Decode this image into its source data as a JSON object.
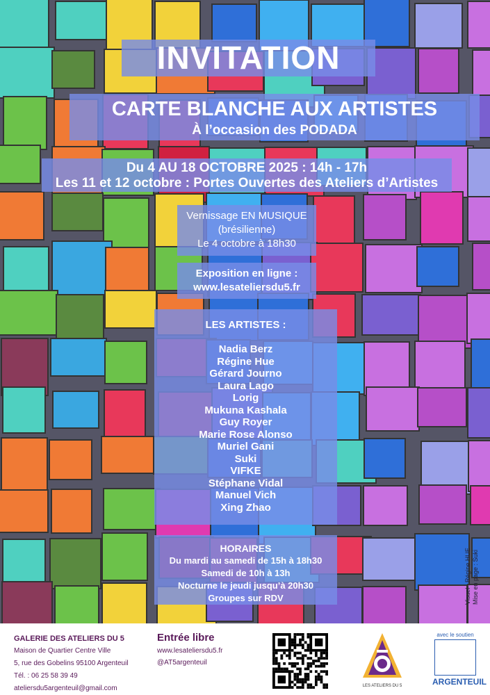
{
  "invitation": "INVITATION",
  "event": {
    "title": "CARTE BLANCHE AUX ARTISTES",
    "subtitle": "À l’occasion des PODADA"
  },
  "dates": {
    "line1": "Du 4 AU 18 OCTOBRE 2025 : 14h - 17h",
    "line2": "Les 11 et 12 octobre : Portes Ouvertes des Ateliers d’Artistes"
  },
  "vernissage": {
    "line1": "Vernissage EN MUSIQUE",
    "line2": "(brésilienne)",
    "line3": "Le 4 octobre à 18h30"
  },
  "expo": {
    "line1": "Exposition en ligne :",
    "line2": "www.lesateliersdu5.fr"
  },
  "artists": {
    "heading": "LES ARTISTES  :",
    "names": [
      "Nadia Berz",
      "Régine Hue",
      "Gérard Journo",
      "Laura Lago",
      "Lorig",
      "Mukuna Kashala",
      "Guy Royer",
      "Marie Rose Alonso",
      "Muriel Gani",
      "Suki",
      "VIFKE",
      "Stéphane Vidal",
      "Manuel Vich",
      "Xing Zhao"
    ]
  },
  "hours": {
    "heading": "HORAIRES",
    "lines": [
      "Du mardi au samedi de 15h à 18h30",
      "Samedi de 10h à 13h",
      "Nocturne le jeudi jusqu’à 20h30",
      "Groupes sur RDV"
    ]
  },
  "credit": {
    "line1": "Visuel : Régine HUE",
    "line2": "Mise en page : Suki"
  },
  "gallery": {
    "name": "GALERIE DES ATELIERS DU 5",
    "line1": "Maison de Quartier Centre Ville",
    "line2": "5, rue des Gobelins 95100 Argenteuil",
    "phone": "Tél. : 06 25 58 39 49",
    "email": "ateliersdu5argenteuil@gmail.com"
  },
  "entry": {
    "title": "Entrée libre",
    "website": "www.lesateliersdu5.fr",
    "social": "@AT5argenteuil"
  },
  "logo_ateliers": "LES ATELIERS DU 5",
  "sponsor": {
    "label": "avec le soutien",
    "name": "ARGENTEUIL"
  }
}
